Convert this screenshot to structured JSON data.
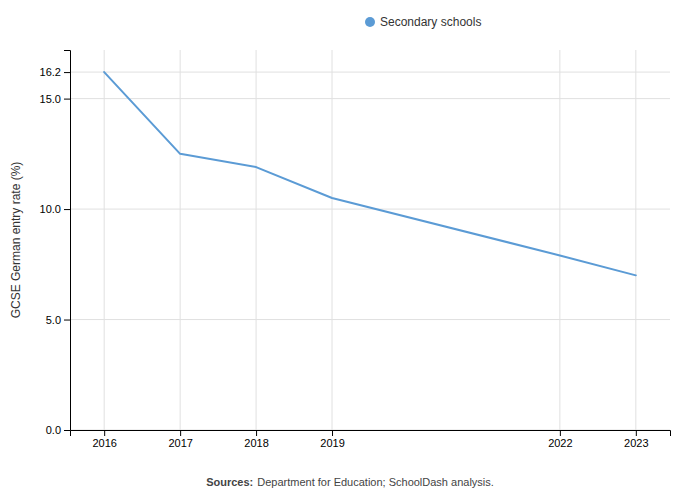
{
  "chart_data": {
    "type": "line",
    "x": [
      2016,
      2017,
      2018,
      2019,
      2022,
      2023
    ],
    "series": [
      {
        "name": "Secondary schools",
        "color": "#5b9bd5",
        "values": [
          16.2,
          12.5,
          11.9,
          10.5,
          7.9,
          7.0
        ]
      }
    ],
    "xlim": [
      2015.55,
      2023.45
    ],
    "xticks": [
      2016,
      2017,
      2018,
      2019,
      2022,
      2023
    ],
    "ylim": [
      0.0,
      17.2
    ],
    "yticks": [
      {
        "value": 0.0,
        "label": "0.0"
      },
      {
        "value": 5.0,
        "label": "5.0"
      },
      {
        "value": 10.0,
        "label": "10.0"
      },
      {
        "value": 15.0,
        "label": "15.0"
      },
      16.2
    ],
    "ylabel": "GCSE German entry rate (%)",
    "annotations": [
      "Sources:",
      "Department for Education; SchoolDash analysis."
    ],
    "grid": true,
    "legend": "top"
  }
}
